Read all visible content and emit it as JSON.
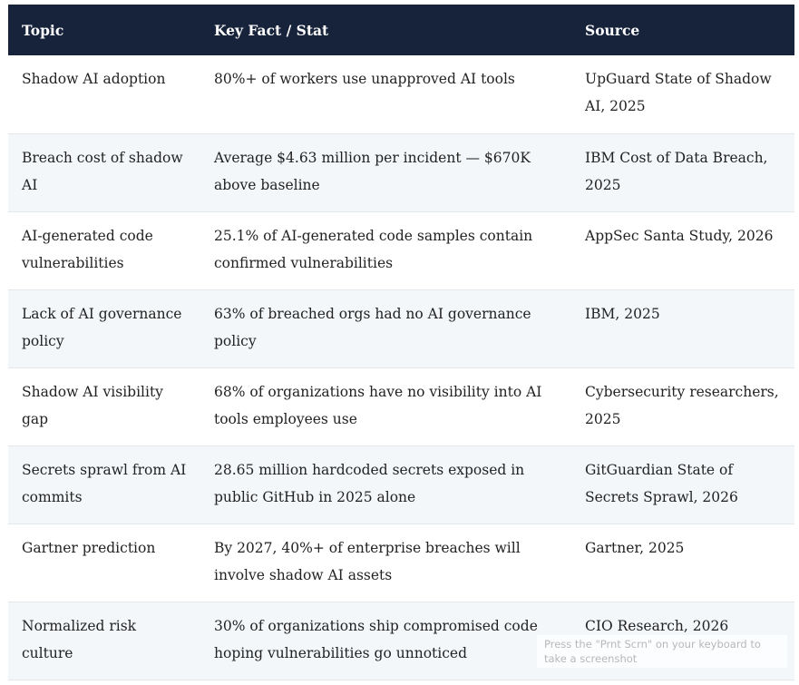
{
  "table": {
    "header": [
      "Topic",
      "Key Fact / Stat",
      "Source"
    ],
    "rows": [
      [
        "Shadow AI adoption",
        "80%+ of workers use unapproved AI tools",
        "UpGuard State of Shadow AI, 2025"
      ],
      [
        "Breach cost of shadow AI",
        "Average $4.63 million per incident — $670K above baseline",
        "IBM Cost of Data Breach, 2025"
      ],
      [
        "AI-generated code vulnerabilities",
        "25.1% of AI-generated code samples contain confirmed vulnerabilities",
        "AppSec Santa Study, 2026"
      ],
      [
        "Lack of AI governance policy",
        "63% of breached orgs had no AI governance policy",
        "IBM, 2025"
      ],
      [
        "Shadow AI visibility gap",
        "68% of organizations have no visibility into AI tools employees use",
        "Cybersecurity researchers, 2025"
      ],
      [
        "Secrets sprawl from AI commits",
        "28.65 million hardcoded secrets exposed in public GitHub in 2025 alone",
        "GitGuardian State of Secrets Sprawl, 2026"
      ],
      [
        "Gartner prediction",
        "By 2027, 40%+ of enterprise breaches will involve shadow AI assets",
        "Gartner, 2025"
      ],
      [
        "Normalized risk culture",
        "30% of organizations ship compromised code hoping vulnerabilities go unnoticed",
        "CIO Research, 2026"
      ]
    ]
  },
  "toast": {
    "text": "Press the \"Prnt Scrn\" on your keyboard to take a screenshot"
  }
}
